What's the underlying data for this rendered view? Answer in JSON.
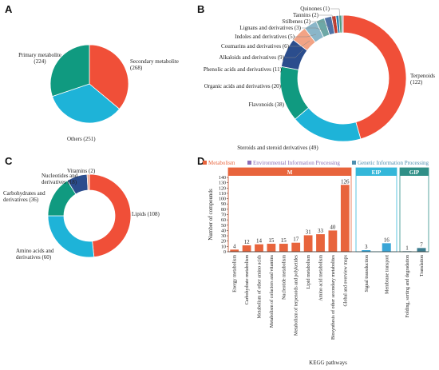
{
  "colors": {
    "metabolism": "#e8643c",
    "eip": "#33b7d9",
    "gip": "#2f8f87",
    "bar_metabolism": "#e8643c",
    "bar_eip": "#3aa5d6",
    "bar_gip": "#3c7d8f",
    "leg_eip": "#8b6fb8",
    "leg_gip": "#4d8fb0"
  },
  "chart_data": [
    {
      "type": "pie",
      "panel": "A",
      "slices": [
        {
          "label": "Secondary metabolite",
          "value": 268,
          "color": "#f04f38"
        },
        {
          "label": "Others",
          "value": 251,
          "color": "#1eb3d8"
        },
        {
          "label": "Primary metabolite",
          "value": 224,
          "color": "#109a80"
        }
      ],
      "label_texts": [
        [
          "Secondary metabolite",
          "(268)"
        ],
        [
          "Others (251)"
        ],
        [
          "Primary metabolite",
          "(224)"
        ]
      ]
    },
    {
      "type": "pie",
      "panel": "B",
      "donut": true,
      "slices": [
        {
          "label": "Terpenoids",
          "value": 122,
          "color": "#f04f38"
        },
        {
          "label": "Steroids and steroid derivatives",
          "value": 49,
          "color": "#1eb3d8"
        },
        {
          "label": "Flavonoids",
          "value": 38,
          "color": "#109a80"
        },
        {
          "label": "Organic acids and derivatives",
          "value": 20,
          "color": "#2b4d8d"
        },
        {
          "label": "Phenolic acids and derivatives",
          "value": 11,
          "color": "#f2a385"
        },
        {
          "label": "Alkaloids and derivatives",
          "value": 9,
          "color": "#8ab6c9"
        },
        {
          "label": "Coumarins and derivatives",
          "value": 6,
          "color": "#6da8a6"
        },
        {
          "label": "Indoles and derivatives",
          "value": 5,
          "color": "#4f72a6"
        },
        {
          "label": "Lignans and derivatives",
          "value": 3,
          "color": "#c0392b"
        },
        {
          "label": "Stilbenes",
          "value": 2,
          "color": "#2b7fae"
        },
        {
          "label": "Tannins",
          "value": 2,
          "color": "#4f9d7f"
        },
        {
          "label": "Quinones",
          "value": 1,
          "color": "#8d97ad"
        }
      ],
      "label_texts": [
        [
          "Terpenoids",
          "(122)"
        ],
        [
          "Steroids and steroid derivatives (49)"
        ],
        [
          "Flavonoids (38)"
        ],
        [
          "Organic acids and derivatives (20)"
        ],
        [
          "Phenolic acids and derivatives (11)"
        ],
        [
          "Alkaloids and derivatives (9)"
        ],
        [
          "Coumarins and derivatives (6)"
        ],
        [
          "Indoles and derivatives (5)"
        ],
        [
          "Lignans and derivatives (3)"
        ],
        [
          "Stilbenes (2)"
        ],
        [
          "Tannins (2)"
        ],
        [
          "Quinones (1)"
        ]
      ]
    },
    {
      "type": "pie",
      "panel": "C",
      "donut": true,
      "slices": [
        {
          "label": "Lipids",
          "value": 108,
          "color": "#f04f38"
        },
        {
          "label": "Amino acids and derivatives",
          "value": 60,
          "color": "#1eb3d8"
        },
        {
          "label": "Carbohydrates and derivatives",
          "value": 36,
          "color": "#109a80"
        },
        {
          "label": "Nucleotides and derivatives",
          "value": 18,
          "color": "#2b4d8d"
        },
        {
          "label": "Vitamins",
          "value": 2,
          "color": "#f2a385"
        }
      ],
      "label_texts": [
        [
          "Lipids (108)"
        ],
        [
          "Amino acids and",
          "derivatives (60)"
        ],
        [
          "Carbohydrates and",
          "derivatives (36)"
        ],
        [
          "Nucleotides and",
          "derivatives (18)"
        ],
        [
          "Vitamins (2)"
        ]
      ]
    },
    {
      "type": "bar",
      "panel": "D",
      "xlabel": "KEGG pathways",
      "ylabel": "Number of compounds",
      "ylim": [
        0,
        140
      ],
      "yticks": [
        0,
        10,
        20,
        30,
        40,
        50,
        60,
        70,
        80,
        90,
        100,
        110,
        120,
        130,
        140
      ],
      "legend": [
        "Metabolism",
        "Environmental Information Processing",
        "Genetic Information Processing"
      ],
      "groups": [
        {
          "label": "M",
          "categories": [
            "Energy metabolism",
            "Carbohydrate metabolism",
            "Metabolism of other amino acids",
            "Metabolism of cofactors and vitamins",
            "Nucleotide metabolism",
            "Metabolism of terpenoids and polyketides",
            "Lipid metabolism",
            "Amino acid metabolism",
            "Biosynthesis of other secondary metabolites",
            "Global and overview maps"
          ],
          "values": [
            4,
            12,
            14,
            15,
            15,
            17,
            31,
            33,
            40,
            126
          ]
        },
        {
          "label": "EIP",
          "categories": [
            "Signal transduction",
            "Membrane transport"
          ],
          "values": [
            3,
            16
          ]
        },
        {
          "label": "GIP",
          "categories": [
            "Folding, sorting and degradation",
            "Translation"
          ],
          "values": [
            1,
            7
          ]
        }
      ]
    }
  ]
}
